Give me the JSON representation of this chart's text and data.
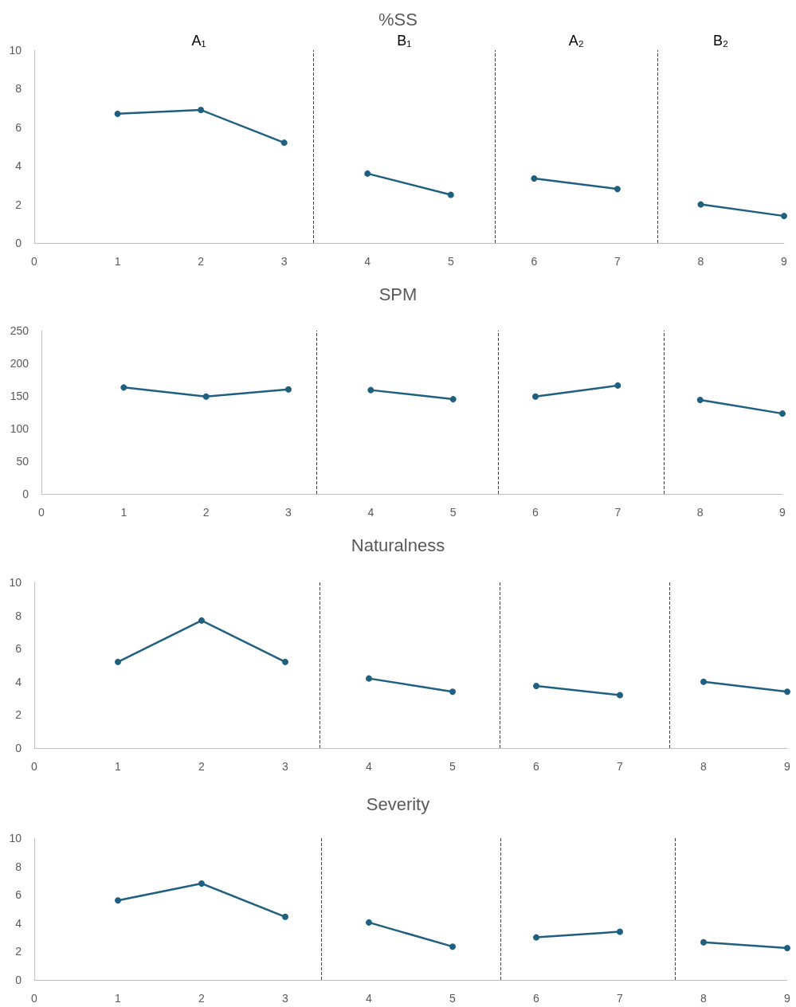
{
  "chart_data": [
    {
      "type": "line",
      "title": "%SS",
      "xlim": [
        0,
        9
      ],
      "xticks": [
        0,
        1,
        2,
        3,
        4,
        5,
        6,
        7,
        8,
        9
      ],
      "ylim": [
        0,
        10
      ],
      "yticks": [
        0,
        2,
        4,
        6,
        8,
        10
      ],
      "grid": false,
      "marker": "circle",
      "line_style": "solid",
      "series": [
        {
          "color": "#1f5f7f",
          "x": [
            1,
            2,
            3
          ],
          "values": [
            6.7,
            6.9,
            5.2
          ]
        },
        {
          "color": "#1f5f7f",
          "x": [
            4,
            5
          ],
          "values": [
            3.6,
            2.5
          ]
        },
        {
          "color": "#1f5f7f",
          "x": [
            6,
            7
          ],
          "values": [
            3.35,
            2.8
          ]
        },
        {
          "color": "#1f5f7f",
          "x": [
            8,
            9
          ],
          "values": [
            2.0,
            1.4
          ]
        }
      ],
      "ref_lines": [
        {
          "axis": "x",
          "value": 3.35,
          "color": "#404040",
          "line_style": "dashed"
        },
        {
          "axis": "x",
          "value": 5.53,
          "color": "#404040",
          "line_style": "dashed"
        },
        {
          "axis": "x",
          "value": 7.48,
          "color": "#404040",
          "line_style": "dashed"
        }
      ],
      "annotations": [
        "A₁",
        "B₁",
        "A₂",
        "B₂"
      ]
    },
    {
      "type": "line",
      "title": "SPM",
      "xlim": [
        0,
        9
      ],
      "xticks": [
        0,
        1,
        2,
        3,
        4,
        5,
        6,
        7,
        8,
        9
      ],
      "ylim": [
        0,
        250
      ],
      "yticks": [
        0,
        50,
        100,
        150,
        200,
        250
      ],
      "grid": false,
      "marker": "circle",
      "line_style": "solid",
      "series": [
        {
          "color": "#1f5f7f",
          "x": [
            1,
            2,
            3
          ],
          "values": [
            163,
            149,
            160
          ]
        },
        {
          "color": "#1f5f7f",
          "x": [
            4,
            5
          ],
          "values": [
            159,
            145
          ]
        },
        {
          "color": "#1f5f7f",
          "x": [
            6,
            7
          ],
          "values": [
            149,
            166
          ]
        },
        {
          "color": "#1f5f7f",
          "x": [
            8,
            9
          ],
          "values": [
            144,
            123
          ]
        }
      ],
      "ref_lines": [
        {
          "axis": "x",
          "value": 3.34,
          "color": "#404040",
          "line_style": "dashed"
        },
        {
          "axis": "x",
          "value": 5.55,
          "color": "#404040",
          "line_style": "dashed"
        },
        {
          "axis": "x",
          "value": 7.56,
          "color": "#404040",
          "line_style": "dashed"
        }
      ]
    },
    {
      "type": "line",
      "title": "Naturalness",
      "xlim": [
        0,
        9
      ],
      "xticks": [
        0,
        1,
        2,
        3,
        4,
        5,
        6,
        7,
        8,
        9
      ],
      "ylim": [
        0,
        10
      ],
      "yticks": [
        0,
        2,
        4,
        6,
        8,
        10
      ],
      "grid": false,
      "marker": "circle",
      "line_style": "solid",
      "series": [
        {
          "color": "#1f5f7f",
          "x": [
            1,
            2,
            3
          ],
          "values": [
            5.2,
            7.7,
            5.2
          ]
        },
        {
          "color": "#1f5f7f",
          "x": [
            4,
            5
          ],
          "values": [
            4.2,
            3.4
          ]
        },
        {
          "color": "#1f5f7f",
          "x": [
            6,
            7
          ],
          "values": [
            3.75,
            3.2
          ]
        },
        {
          "color": "#1f5f7f",
          "x": [
            8,
            9
          ],
          "values": [
            4.0,
            3.4
          ]
        }
      ],
      "ref_lines": [
        {
          "axis": "x",
          "value": 3.41,
          "color": "#404040",
          "line_style": "dashed"
        },
        {
          "axis": "x",
          "value": 5.56,
          "color": "#404040",
          "line_style": "dashed"
        },
        {
          "axis": "x",
          "value": 7.59,
          "color": "#404040",
          "line_style": "dashed"
        }
      ]
    },
    {
      "type": "line",
      "title": "Severity",
      "xlim": [
        0,
        9
      ],
      "xticks": [
        0,
        1,
        2,
        3,
        4,
        5,
        6,
        7,
        8,
        9
      ],
      "ylim": [
        0,
        10
      ],
      "yticks": [
        0,
        2,
        4,
        6,
        8,
        10
      ],
      "grid": false,
      "marker": "circle",
      "line_style": "solid",
      "series": [
        {
          "color": "#1f5f7f",
          "x": [
            1,
            2,
            3
          ],
          "values": [
            5.6,
            6.8,
            4.45
          ]
        },
        {
          "color": "#1f5f7f",
          "x": [
            4,
            5
          ],
          "values": [
            4.05,
            2.35
          ]
        },
        {
          "color": "#1f5f7f",
          "x": [
            6,
            7
          ],
          "values": [
            3.0,
            3.4
          ]
        },
        {
          "color": "#1f5f7f",
          "x": [
            8,
            9
          ],
          "values": [
            2.65,
            2.25
          ]
        }
      ],
      "ref_lines": [
        {
          "axis": "x",
          "value": 3.43,
          "color": "#404040",
          "line_style": "dashed"
        },
        {
          "axis": "x",
          "value": 5.57,
          "color": "#404040",
          "line_style": "dashed"
        },
        {
          "axis": "x",
          "value": 7.66,
          "color": "#404040",
          "line_style": "dashed"
        }
      ]
    }
  ]
}
